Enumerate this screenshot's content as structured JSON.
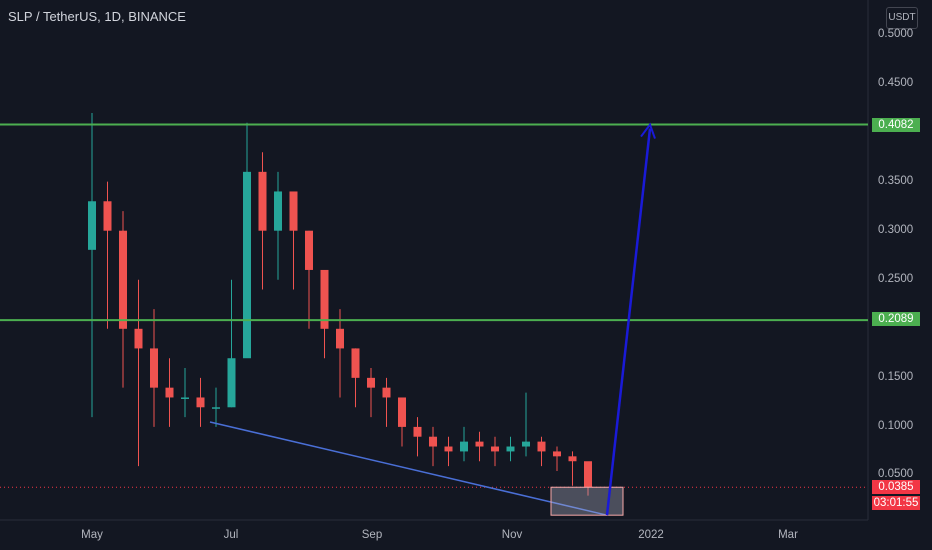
{
  "header": {
    "title": "SLP / TetherUS, 1D, BINANCE"
  },
  "currency_badge": "USDT",
  "price_tags": {
    "resistance_upper": "0.4082",
    "resistance_lower": "0.2089",
    "last_price": "0.0385",
    "countdown": "03:01:55"
  },
  "colors": {
    "background": "#131722",
    "up": "#26a69a",
    "down": "#ef5350",
    "level_line": "#4caf50",
    "trendline": "#4a6fd6",
    "projection_arrow": "#1a1ad8",
    "last_price": "#f23645"
  },
  "chart_data": {
    "type": "candlestick",
    "title": "SLP / TetherUS, 1D, BINANCE",
    "y_axis": {
      "unit": "USDT",
      "range": [
        0.0,
        0.52
      ],
      "ticks": [
        "0.5000",
        "0.4500",
        "0.3500",
        "0.3000",
        "0.2500",
        "0.1500",
        "0.1000",
        "0.0500"
      ]
    },
    "x_axis": {
      "ticks": [
        "May",
        "Jul",
        "Sep",
        "Nov",
        "2022",
        "Mar"
      ]
    },
    "series": [
      {
        "name": "SLP/USDT",
        "x": [
          "May",
          "May",
          "May",
          "May",
          "May",
          "Jun",
          "Jun",
          "Jun",
          "Jun",
          "Jul",
          "Jul",
          "Jul",
          "Jul",
          "Jul",
          "Jul",
          "Aug",
          "Aug",
          "Aug",
          "Aug",
          "Sep",
          "Sep",
          "Sep",
          "Sep",
          "Oct",
          "Oct",
          "Oct",
          "Oct",
          "Nov",
          "Nov",
          "Nov",
          "Nov",
          "Nov",
          "Dec"
        ],
        "close": [
          0.33,
          0.3,
          0.2,
          0.18,
          0.14,
          0.13,
          0.13,
          0.12,
          0.12,
          0.17,
          0.36,
          0.3,
          0.34,
          0.3,
          0.26,
          0.2,
          0.18,
          0.15,
          0.14,
          0.13,
          0.1,
          0.09,
          0.08,
          0.075,
          0.085,
          0.08,
          0.075,
          0.08,
          0.085,
          0.075,
          0.07,
          0.065,
          0.0385
        ],
        "high": [
          0.42,
          0.35,
          0.32,
          0.25,
          0.22,
          0.17,
          0.16,
          0.15,
          0.14,
          0.25,
          0.41,
          0.38,
          0.36,
          0.33,
          0.3,
          0.24,
          0.22,
          0.18,
          0.16,
          0.15,
          0.12,
          0.11,
          0.1,
          0.09,
          0.1,
          0.095,
          0.09,
          0.09,
          0.135,
          0.09,
          0.08,
          0.075,
          0.06
        ],
        "low": [
          0.11,
          0.2,
          0.14,
          0.06,
          0.1,
          0.1,
          0.11,
          0.1,
          0.1,
          0.12,
          0.25,
          0.24,
          0.25,
          0.24,
          0.2,
          0.17,
          0.13,
          0.12,
          0.11,
          0.1,
          0.08,
          0.07,
          0.06,
          0.06,
          0.065,
          0.065,
          0.06,
          0.065,
          0.07,
          0.06,
          0.055,
          0.04,
          0.03
        ]
      }
    ],
    "horizontal_levels": [
      0.4082,
      0.2089
    ],
    "last_price": 0.0385,
    "annotations": {
      "descending_trendline": {
        "from": {
          "x": "Jun",
          "y": 0.105
        },
        "to": {
          "x": "Dec",
          "y": 0.01
        }
      },
      "support_box": {
        "x_range": [
          "Nov",
          "Dec"
        ],
        "y_range": [
          0.01,
          0.0385
        ]
      },
      "projection_arrow": {
        "from": {
          "x": "Dec",
          "y": 0.01
        },
        "to": {
          "x": "2022",
          "y": 0.4082
        }
      }
    },
    "grid": false,
    "legend": "top-left"
  }
}
